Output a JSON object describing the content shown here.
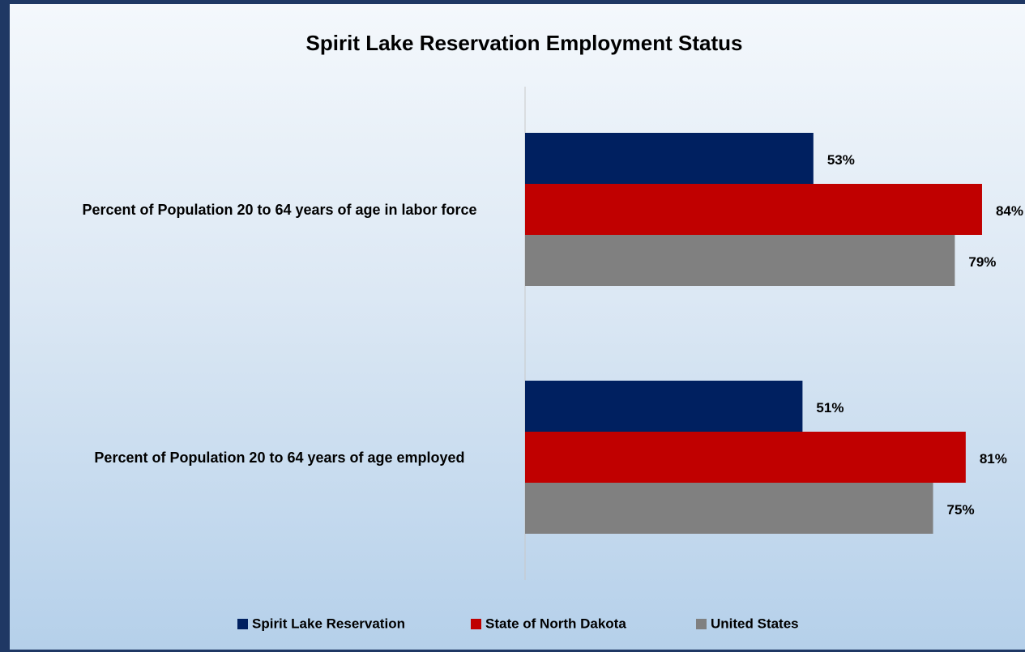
{
  "chart_data": {
    "type": "bar",
    "orientation": "horizontal",
    "title": "Spirit Lake Reservation Employment Status",
    "categories": [
      "Percent of Population 20 to 64 years of age in labor force",
      "Percent of Population 20 to 64 years of age employed"
    ],
    "series": [
      {
        "name": "Spirit Lake Reservation",
        "color": "#002060",
        "values": [
          53,
          51
        ],
        "value_labels": [
          "53%",
          "51%"
        ]
      },
      {
        "name": "State of North Dakota",
        "color": "#c00000",
        "values": [
          84,
          81
        ],
        "value_labels": [
          "84%",
          "81%"
        ]
      },
      {
        "name": "United States",
        "color": "#808080",
        "values": [
          79,
          75
        ],
        "value_labels": [
          "79%",
          "75%"
        ]
      }
    ],
    "legend": "bottom"
  }
}
